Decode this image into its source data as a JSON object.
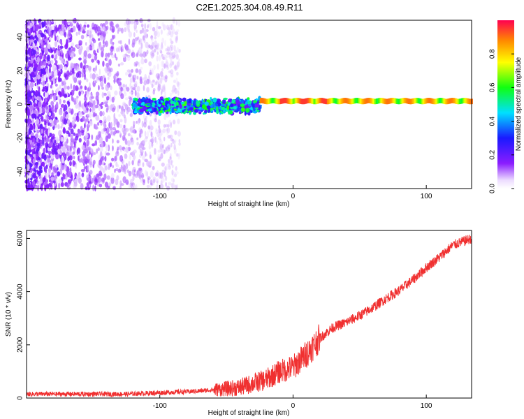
{
  "title": "C2E1.2025.304.08.49.R11",
  "colors": {
    "snr_line": "#f03030",
    "frame": "#000000"
  },
  "chart_data": [
    {
      "type": "heatmap",
      "xlabel": "Height of straight line (km)",
      "ylabel": "Frequency (Hz)",
      "xlim": [
        -200,
        134
      ],
      "ylim": [
        -50,
        50
      ],
      "xticks": [
        -100,
        0,
        100
      ],
      "xtick_labels": [
        "-100",
        "0",
        "100"
      ],
      "yticks": [
        -40,
        -20,
        0,
        20,
        40
      ],
      "ytick_labels": [
        "-40",
        "-20",
        "0",
        "20",
        "40"
      ],
      "colorbar": {
        "label": "Normalized spectral amplitude",
        "range": [
          0,
          1
        ],
        "ticks": [
          0,
          0.2,
          0.4,
          0.6,
          0.8
        ],
        "tick_labels": [
          "0.0",
          "0.2",
          "0.4",
          "0.6",
          "0.8"
        ],
        "colormap": "rainbow (white -> violet -> blue -> cyan -> green -> yellow -> red)"
      },
      "features": {
        "noise_region_km": [
          -200,
          -120
        ],
        "noisy_band_km": [
          -120,
          -25
        ],
        "noisy_band_freq_hz": [
          -5,
          5
        ],
        "tone_start_km": -25,
        "tone_freq_hz": 2,
        "tone_peak_amplitude": 0.95
      }
    },
    {
      "type": "line",
      "xlabel": "Height of straight line (km)",
      "ylabel": "SNR (10 * v/v)",
      "xlim": [
        -200,
        134
      ],
      "ylim": [
        0,
        6300
      ],
      "xticks": [
        -100,
        0,
        100
      ],
      "xtick_labels": [
        "-100",
        "0",
        "100"
      ],
      "yticks": [
        0,
        2000,
        4000,
        6000
      ],
      "ytick_labels": [
        "0",
        "2000",
        "4000",
        "6000"
      ],
      "series": [
        {
          "name": "SNR",
          "x": [
            -200,
            -175,
            -150,
            -125,
            -100,
            -75,
            -50,
            -40,
            -30,
            -20,
            -10,
            0,
            10,
            20,
            30,
            40,
            50,
            60,
            70,
            80,
            90,
            100,
            110,
            120,
            134
          ],
          "y": [
            150,
            150,
            150,
            150,
            200,
            250,
            350,
            400,
            550,
            700,
            1000,
            1150,
            1650,
            2250,
            2650,
            2850,
            3100,
            3400,
            3750,
            4050,
            4450,
            4900,
            5300,
            5750,
            6000
          ]
        }
      ]
    }
  ]
}
